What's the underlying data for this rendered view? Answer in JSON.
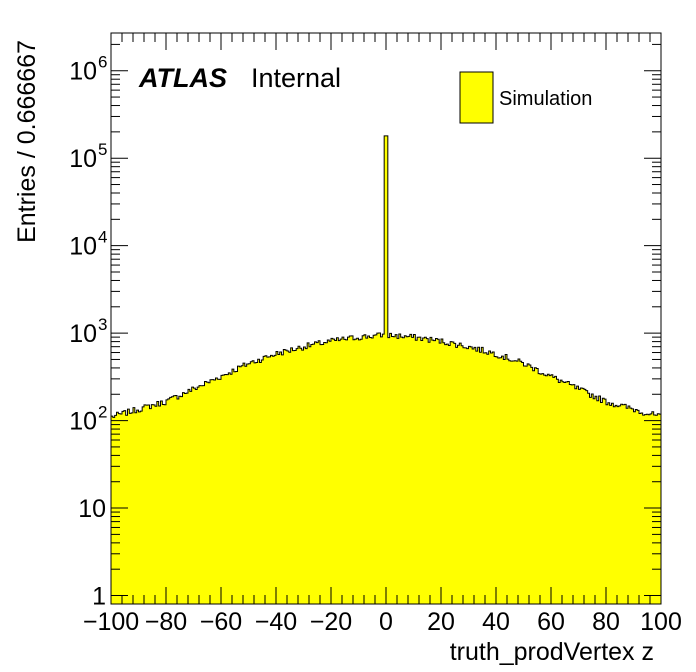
{
  "chart_data": {
    "type": "histogram",
    "xlabel": "truth_prodVertex z",
    "ylabel": "Entries / 0.666667",
    "xlim": [
      -100,
      100
    ],
    "ylim": [
      0.8,
      2700000
    ],
    "log_y": true,
    "bin_width": 0.666667,
    "x_ticks": [
      {
        "value": -100,
        "label": "−100"
      },
      {
        "value": -80,
        "label": "−80"
      },
      {
        "value": -60,
        "label": "−60"
      },
      {
        "value": -40,
        "label": "−40"
      },
      {
        "value": -20,
        "label": "−20"
      },
      {
        "value": 0,
        "label": "0"
      },
      {
        "value": 20,
        "label": "20"
      },
      {
        "value": 40,
        "label": "40"
      },
      {
        "value": 60,
        "label": "60"
      },
      {
        "value": 80,
        "label": "80"
      },
      {
        "value": 100,
        "label": "100"
      }
    ],
    "y_ticks": [
      {
        "value": 1,
        "base": "1",
        "exp": ""
      },
      {
        "value": 10,
        "base": "10",
        "exp": ""
      },
      {
        "value": 100,
        "base": "10",
        "exp": "2"
      },
      {
        "value": 1000,
        "base": "10",
        "exp": "3"
      },
      {
        "value": 10000,
        "base": "10",
        "exp": "4"
      },
      {
        "value": 100000,
        "base": "10",
        "exp": "5"
      },
      {
        "value": 1000000,
        "base": "10",
        "exp": "6"
      }
    ],
    "series": [
      {
        "name": "Simulation",
        "color": "#ffff00",
        "line_color": "#000000",
        "x": [
          -100,
          -90,
          -80,
          -70,
          -60,
          -50,
          -40,
          -30,
          -20,
          -10,
          -0.5,
          0,
          0.5,
          10,
          20,
          30,
          40,
          50,
          60,
          70,
          80,
          90,
          100
        ],
        "y": [
          110,
          135,
          165,
          230,
          320,
          450,
          580,
          700,
          810,
          900,
          950,
          180000,
          950,
          900,
          810,
          700,
          580,
          450,
          320,
          230,
          165,
          135,
          110
        ]
      }
    ],
    "legend": {
      "position": "top-right",
      "entries": [
        "Simulation"
      ]
    },
    "annotations": {
      "atlas": "ATLAS",
      "internal": "Internal"
    }
  }
}
